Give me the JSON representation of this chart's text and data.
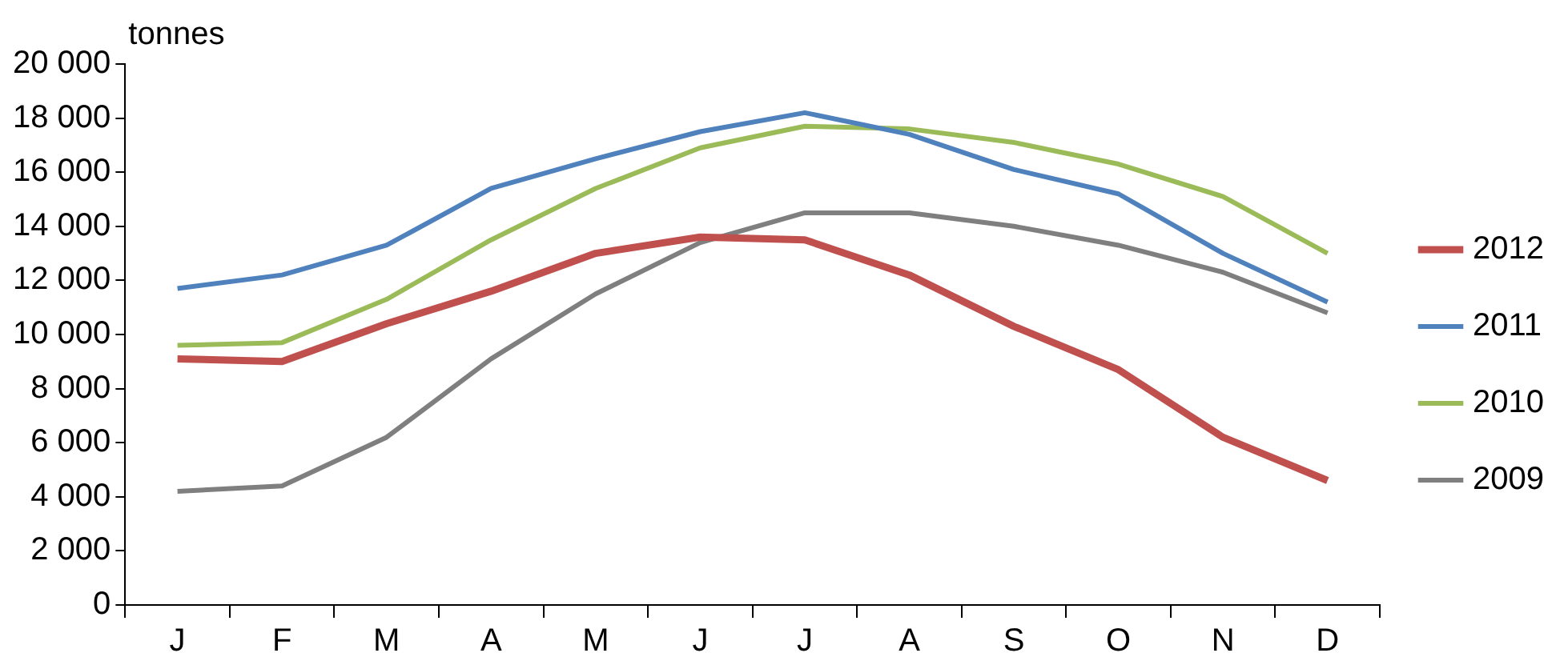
{
  "chart_data": {
    "type": "line",
    "ylabel": "tonnes",
    "categories": [
      "J",
      "F",
      "M",
      "A",
      "M",
      "J",
      "J",
      "A",
      "S",
      "O",
      "N",
      "D"
    ],
    "series": [
      {
        "name": "2012",
        "color": "#c0504d",
        "values": [
          9100,
          9000,
          10400,
          11600,
          13000,
          13600,
          13500,
          12200,
          10300,
          8700,
          6200,
          4600
        ]
      },
      {
        "name": "2011",
        "color": "#4f81bd",
        "values": [
          11700,
          12200,
          13300,
          15400,
          16500,
          17500,
          18200,
          17400,
          16100,
          15200,
          13000,
          11200
        ]
      },
      {
        "name": "2010",
        "color": "#9bbb59",
        "values": [
          9600,
          9700,
          11300,
          13500,
          15400,
          16900,
          17700,
          17600,
          17100,
          16300,
          15100,
          13000
        ]
      },
      {
        "name": "2009",
        "color": "#7f7f7f",
        "values": [
          4200,
          4400,
          6200,
          9100,
          11500,
          13400,
          14500,
          14500,
          14000,
          13300,
          12300,
          10800
        ]
      }
    ],
    "ylim": [
      0,
      20000
    ],
    "yticks": [
      0,
      {
        "value": 2000,
        "label": "2 000"
      },
      {
        "value": 4000,
        "label": "4 000"
      },
      {
        "value": 6000,
        "label": "6 000"
      },
      {
        "value": 8000,
        "label": "8 000"
      },
      {
        "value": 10000,
        "label": "10 000"
      },
      {
        "value": 12000,
        "label": "12 000"
      },
      {
        "value": 14000,
        "label": "14 000"
      },
      {
        "value": 16000,
        "label": "16 000"
      },
      {
        "value": 18000,
        "label": "18 000"
      },
      {
        "value": 20000,
        "label": "20 000"
      }
    ],
    "grid": false,
    "legend": "right",
    "marker": "none",
    "line_style": "solid"
  }
}
